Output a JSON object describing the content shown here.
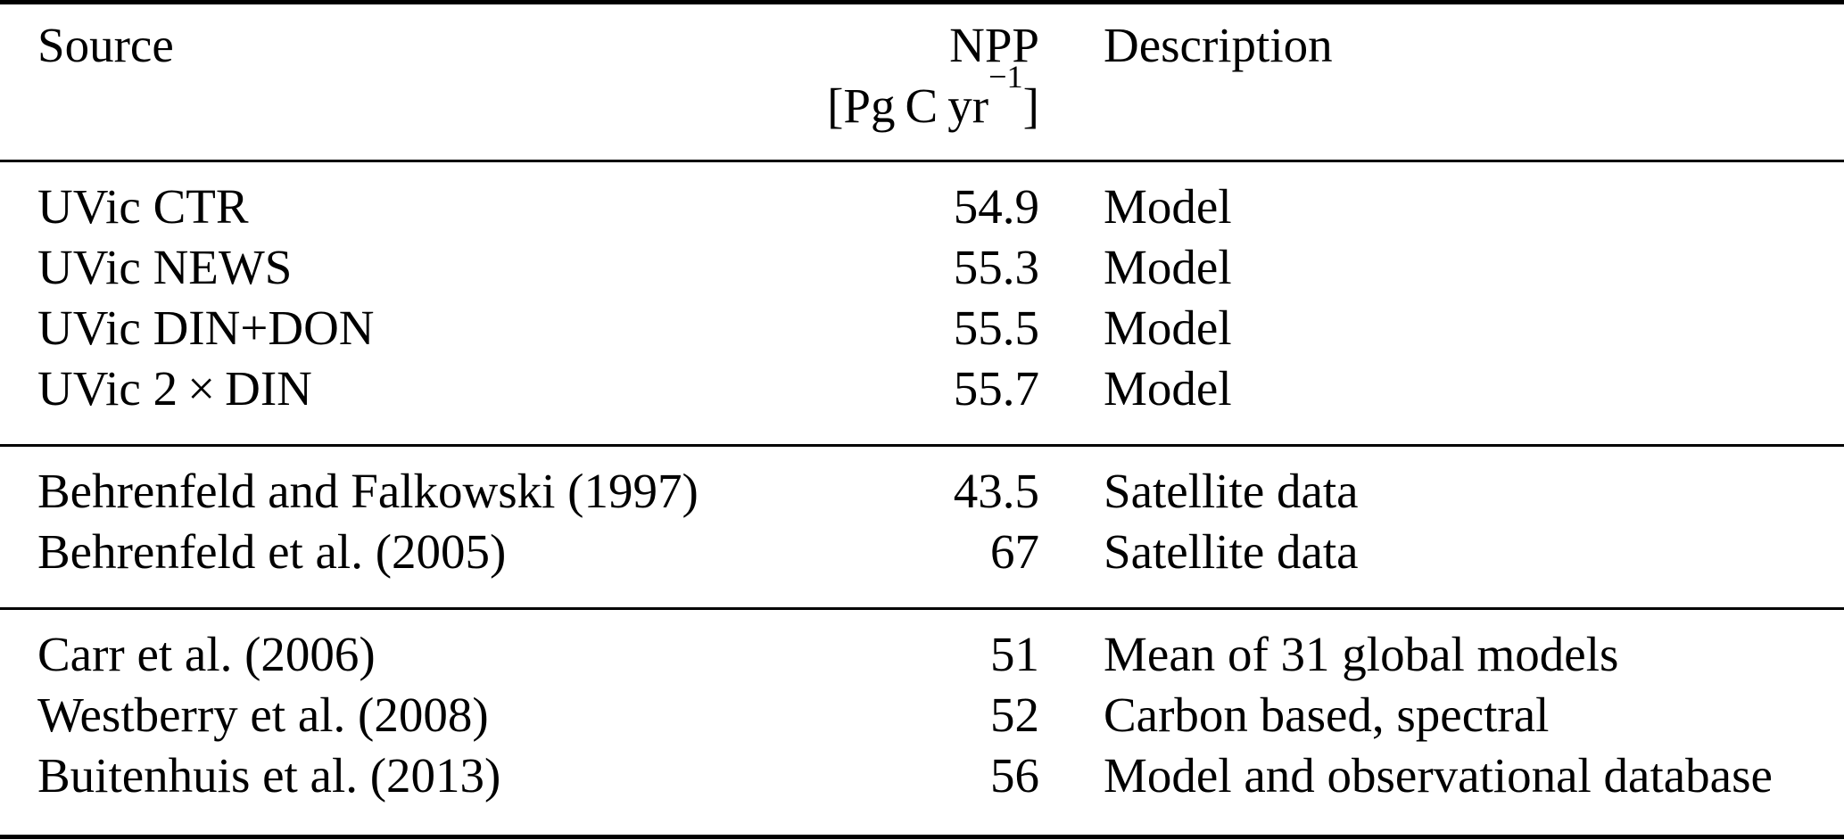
{
  "page": {
    "background_color": "#ffffff",
    "text_color": "#000000",
    "rule_color": "#000000"
  },
  "table": {
    "header": {
      "source": "Source",
      "npp_line1": "NPP",
      "npp_unit_pre": "[Pg C yr",
      "npp_unit_sup": "−1",
      "npp_unit_post": "]",
      "description": "Description"
    },
    "groups": [
      {
        "rows": [
          {
            "source": "UVic CTR",
            "npp": "54.9",
            "description": "Model"
          },
          {
            "source": "UVic NEWS",
            "npp": "55.3",
            "description": "Model"
          },
          {
            "source": "UVic DIN+DON",
            "npp": "55.5",
            "description": "Model"
          },
          {
            "source": "UVic 2 × DIN",
            "npp": "55.7",
            "description": "Model"
          }
        ]
      },
      {
        "rows": [
          {
            "source": "Behrenfeld and Falkowski (1997)",
            "npp": "43.5",
            "description": "Satellite data"
          },
          {
            "source": "Behrenfeld et al. (2005)",
            "npp": "67",
            "description": "Satellite data"
          }
        ]
      },
      {
        "rows": [
          {
            "source": "Carr et al. (2006)",
            "npp": "51",
            "description": "Mean of 31 global models"
          },
          {
            "source": "Westberry et al. (2008)",
            "npp": "52",
            "description": "Carbon based, spectral"
          },
          {
            "source": "Buitenhuis et al. (2013)",
            "npp": "56",
            "description": "Model and observational database"
          }
        ]
      }
    ]
  }
}
